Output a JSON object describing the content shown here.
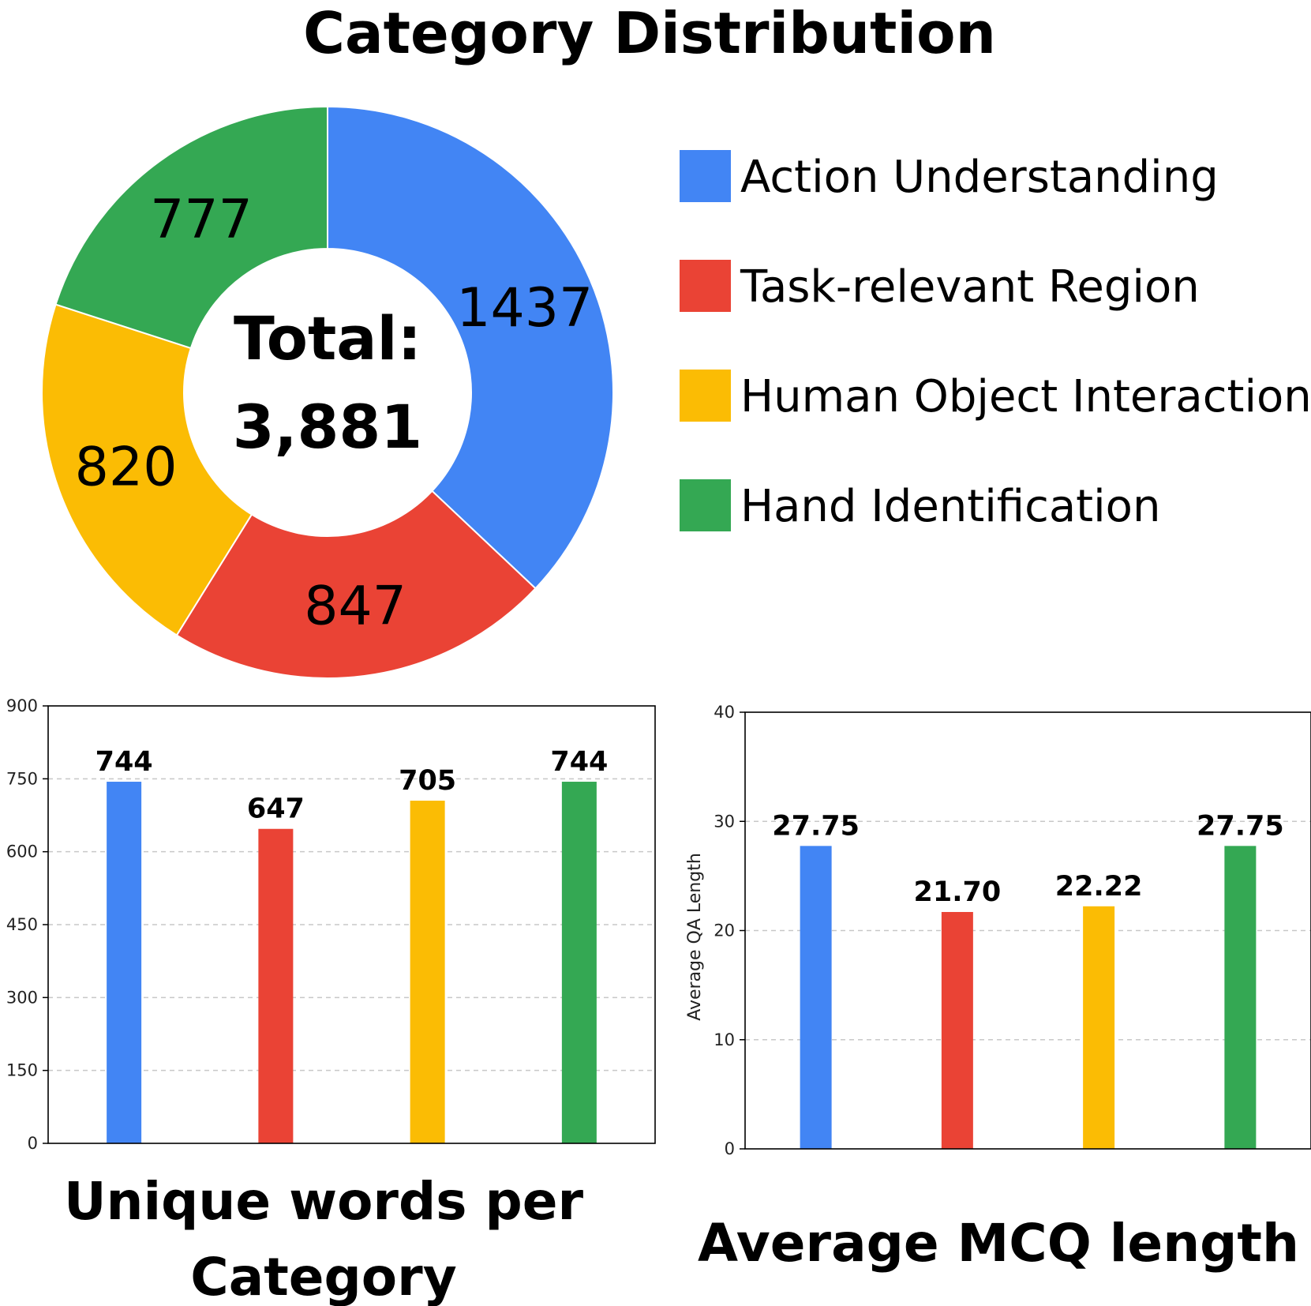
{
  "colors": {
    "Action Understanding": "#4285F4",
    "Task-relevant Region": "#EA4335",
    "Human Object Interaction": "#FBBC04",
    "Hand Identification": "#34A853"
  },
  "chart_data": [
    {
      "type": "pie",
      "title": "Category Distribution",
      "center_label": [
        "Total:",
        "3,881"
      ],
      "categories": [
        "Action Understanding",
        "Task-relevant Region",
        "Human Object Interaction",
        "Hand Identification"
      ],
      "values": [
        1437,
        847,
        820,
        777
      ],
      "legend": "right"
    },
    {
      "type": "bar",
      "title": "Unique words per Category",
      "categories": [
        "Action Understanding",
        "Task-relevant Region",
        "Human Object Interaction",
        "Hand Identification"
      ],
      "values": [
        744,
        647,
        705,
        744
      ],
      "value_labels": [
        "744",
        "647",
        "705",
        "744"
      ],
      "ylabel": "",
      "ylim": [
        0,
        900
      ],
      "yticks": [
        0,
        150,
        300,
        450,
        600,
        750,
        900
      ],
      "grid": true
    },
    {
      "type": "bar",
      "title": "Average MCQ length",
      "categories": [
        "Action Understanding",
        "Task-relevant Region",
        "Human Object Interaction",
        "Hand Identification"
      ],
      "values": [
        27.75,
        21.7,
        22.22,
        27.75
      ],
      "value_labels": [
        "27.75",
        "21.70",
        "22.22",
        "27.75"
      ],
      "ylabel": "Average QA Length",
      "ylim": [
        0,
        40
      ],
      "yticks": [
        0,
        10,
        20,
        30,
        40
      ],
      "grid": true
    }
  ]
}
